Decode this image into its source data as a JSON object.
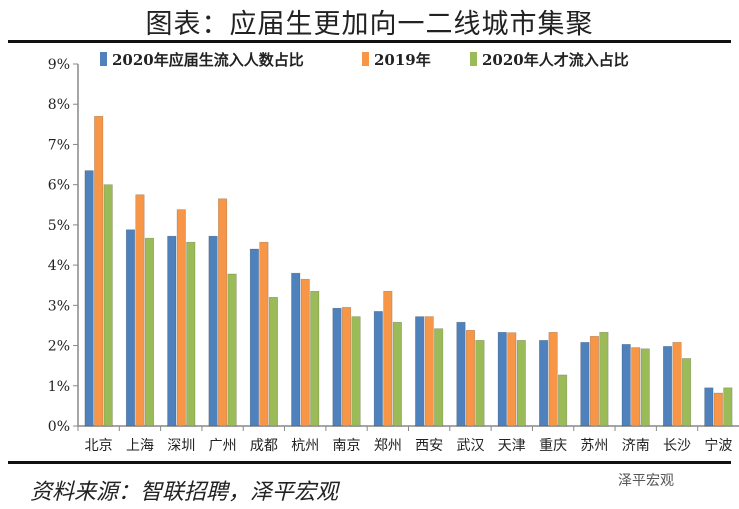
{
  "title": "图表：应届生更加向一二线城市集聚",
  "source": "资料来源：智联招聘，泽平宏观",
  "watermark": "泽平宏观",
  "chart_data": {
    "type": "bar",
    "categories": [
      "北京",
      "上海",
      "深圳",
      "广州",
      "成都",
      "杭州",
      "南京",
      "郑州",
      "西安",
      "武汉",
      "天津",
      "重庆",
      "苏州",
      "济南",
      "长沙",
      "宁波"
    ],
    "series": [
      {
        "name": "2020年应届生流入人数占比",
        "color": "#4f81bd",
        "values": [
          6.35,
          4.88,
          4.72,
          4.72,
          4.4,
          3.8,
          2.93,
          2.85,
          2.72,
          2.58,
          2.33,
          2.13,
          2.08,
          2.03,
          1.98,
          0.95
        ]
      },
      {
        "name": "2019年",
        "color": "#f79646",
        "values": [
          7.7,
          5.75,
          5.38,
          5.65,
          4.57,
          3.65,
          2.95,
          3.35,
          2.72,
          2.38,
          2.32,
          2.33,
          2.23,
          1.95,
          2.08,
          0.82
        ]
      },
      {
        "name": "2020年人才流入占比",
        "color": "#9bbb59",
        "values": [
          6.0,
          4.67,
          4.57,
          3.78,
          3.2,
          3.35,
          2.72,
          2.58,
          2.42,
          2.13,
          2.13,
          1.27,
          2.33,
          1.92,
          1.68,
          0.95
        ]
      }
    ],
    "yticks": [
      "0%",
      "1%",
      "2%",
      "3%",
      "4%",
      "5%",
      "6%",
      "7%",
      "8%",
      "9%"
    ],
    "ylim": [
      0,
      9
    ],
    "legend": "top",
    "grid": false
  }
}
